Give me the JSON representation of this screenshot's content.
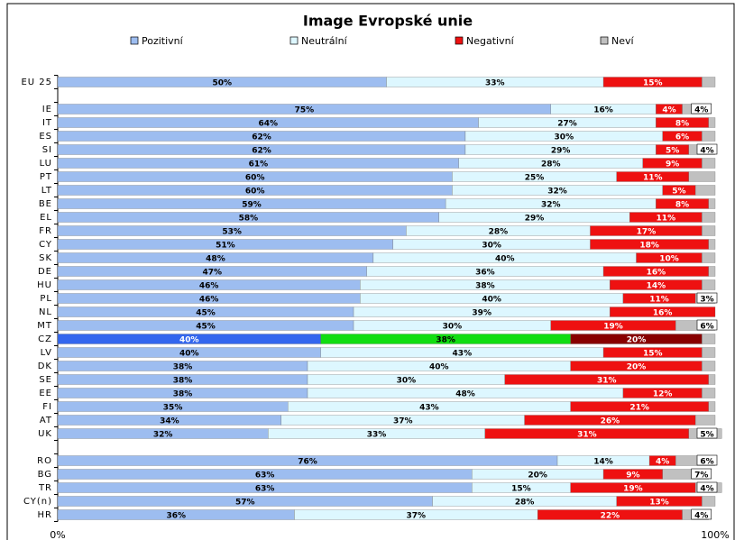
{
  "chart_data": {
    "type": "stacked_bar_horizontal",
    "title": "Image Evropské unie",
    "categories": [
      "EU 25",
      null,
      "IE",
      "IT",
      "ES",
      "SI",
      "LU",
      "PT",
      "LT",
      "BE",
      "EL",
      "FR",
      "CY",
      "SK",
      "DE",
      "HU",
      "PL",
      "NL",
      "MT",
      "CZ",
      "LV",
      "DK",
      "SE",
      "EE",
      "FI",
      "AT",
      "UK",
      null,
      "RO",
      "BG",
      "TR",
      "CY(n)",
      "HR"
    ],
    "highlight_category": "CZ",
    "xlim": [
      0,
      100
    ],
    "xticks": [
      {
        "value": 0,
        "label": "0%"
      },
      {
        "value": 100,
        "label": "100%"
      }
    ],
    "legend": "top",
    "series": [
      {
        "name": "Pozitivní",
        "color": "#9dbdf0",
        "highlight_color": "#3366ee",
        "values": [
          50,
          null,
          75,
          64,
          62,
          62,
          61,
          60,
          60,
          59,
          58,
          53,
          51,
          48,
          47,
          46,
          46,
          45,
          45,
          40,
          40,
          38,
          38,
          38,
          35,
          34,
          32,
          null,
          76,
          63,
          63,
          57,
          36
        ],
        "value_labels": [
          "50%",
          null,
          "75%",
          "64%",
          "62%",
          "62%",
          "61%",
          "60%",
          "60%",
          "59%",
          "58%",
          "53%",
          "51%",
          "48%",
          "47%",
          "46%",
          "46%",
          "45%",
          "45%",
          "40%",
          "40%",
          "38%",
          "38%",
          "38%",
          "35%",
          "34%",
          "32%",
          null,
          "76%",
          "63%",
          "63%",
          "57%",
          "36%"
        ]
      },
      {
        "name": "Neutrální",
        "color": "#ddf7ff",
        "highlight_color": "#11dd11",
        "values": [
          33,
          null,
          16,
          27,
          30,
          29,
          28,
          25,
          32,
          32,
          29,
          28,
          30,
          40,
          36,
          38,
          40,
          39,
          30,
          38,
          43,
          40,
          30,
          48,
          43,
          37,
          33,
          null,
          14,
          20,
          15,
          28,
          37
        ],
        "value_labels": [
          "33%",
          null,
          "16%",
          "27%",
          "30%",
          "29%",
          "28%",
          "25%",
          "32%",
          "32%",
          "29%",
          "28%",
          "30%",
          "40%",
          "36%",
          "38%",
          "40%",
          "39%",
          "30%",
          "38%",
          "43%",
          "40%",
          "30%",
          "48%",
          "43%",
          "37%",
          "33%",
          null,
          "14%",
          "20%",
          "15%",
          "28%",
          "37%"
        ]
      },
      {
        "name": "Negativní",
        "color": "#ee1111",
        "highlight_color": "#880000",
        "values": [
          15,
          null,
          4,
          8,
          6,
          5,
          9,
          11,
          5,
          8,
          11,
          17,
          18,
          10,
          16,
          14,
          11,
          16,
          19,
          20,
          15,
          20,
          31,
          12,
          21,
          26,
          31,
          null,
          4,
          9,
          19,
          13,
          22
        ],
        "value_labels": [
          "15%",
          null,
          "4%",
          "8%",
          "6%",
          "5%",
          "9%",
          "11%",
          "5%",
          "8%",
          "11%",
          "17%",
          "18%",
          "10%",
          "16%",
          "14%",
          "11%",
          "16%",
          "19%",
          "20%",
          "15%",
          "20%",
          "31%",
          "12%",
          "21%",
          "26%",
          "31%",
          null,
          "4%",
          "9%",
          "19%",
          "13%",
          "22%"
        ]
      },
      {
        "name": "Neví",
        "color": "#c0c0c0",
        "highlight_color": "#c0c0c0",
        "values": [
          2,
          null,
          4,
          1,
          2,
          4,
          2,
          4,
          3,
          1,
          2,
          2,
          1,
          2,
          1,
          2,
          3,
          0,
          6,
          2,
          2,
          2,
          1,
          2,
          1,
          3,
          5,
          null,
          6,
          7,
          4,
          2,
          4
        ],
        "value_labels": [
          null,
          null,
          "4%",
          null,
          null,
          "4%",
          null,
          null,
          null,
          null,
          null,
          null,
          null,
          null,
          null,
          null,
          "3%",
          null,
          "6%",
          null,
          null,
          null,
          null,
          null,
          null,
          null,
          "5%",
          null,
          "6%",
          "7%",
          "4%",
          null,
          "4%"
        ]
      }
    ]
  }
}
